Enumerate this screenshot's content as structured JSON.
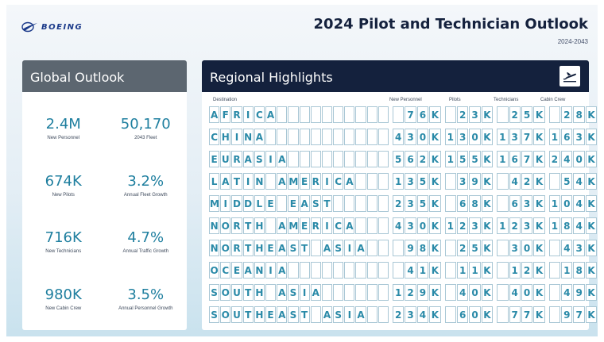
{
  "header": {
    "logo_text": "BOEING",
    "title": "2024 Pilot and Technician Outlook",
    "subtitle": "2024-2043"
  },
  "global": {
    "title": "Global Outlook",
    "stats": [
      {
        "value": "2.4M",
        "label": "New Personnel"
      },
      {
        "value": "50,170",
        "label": "2043 Fleet"
      },
      {
        "value": "674K",
        "label": "New Pilots"
      },
      {
        "value": "3.2%",
        "label": "Annual Fleet Growth"
      },
      {
        "value": "716K",
        "label": "New Technicians"
      },
      {
        "value": "4.7%",
        "label": "Annual Traffic Growth"
      },
      {
        "value": "980K",
        "label": "New Cabin Crew"
      },
      {
        "value": "3.5%",
        "label": "Annual Personnel Growth"
      }
    ]
  },
  "regional": {
    "title": "Regional Highlights",
    "icon": "airplane-departure-icon",
    "columns": [
      "Destination",
      "New Personnel",
      "Pilots",
      "Technicians",
      "Cabin Crew"
    ],
    "rows": [
      {
        "destination": "AFRICA",
        "personnel": "76K",
        "pilots": "23K",
        "technicians": "25K",
        "cabin": "28K"
      },
      {
        "destination": "CHINA",
        "personnel": "430K",
        "pilots": "130K",
        "technicians": "137K",
        "cabin": "163K"
      },
      {
        "destination": "EURASIA",
        "personnel": "562K",
        "pilots": "155K",
        "technicians": "167K",
        "cabin": "240K"
      },
      {
        "destination": "LATIN AMERICA",
        "personnel": "135K",
        "pilots": "39K",
        "technicians": "42K",
        "cabin": "54K"
      },
      {
        "destination": "MIDDLE EAST",
        "personnel": "235K",
        "pilots": "68K",
        "technicians": "63K",
        "cabin": "104K"
      },
      {
        "destination": "NORTH AMERICA",
        "personnel": "430K",
        "pilots": "123K",
        "technicians": "123K",
        "cabin": "184K"
      },
      {
        "destination": "NORTHEAST ASIA",
        "personnel": "98K",
        "pilots": "25K",
        "technicians": "30K",
        "cabin": "43K"
      },
      {
        "destination": "OCEANIA",
        "personnel": "41K",
        "pilots": "11K",
        "technicians": "12K",
        "cabin": "18K"
      },
      {
        "destination": "SOUTH ASIA",
        "personnel": "129K",
        "pilots": "40K",
        "technicians": "40K",
        "cabin": "49K"
      },
      {
        "destination": "SOUTHEAST ASIA",
        "personnel": "234K",
        "pilots": "60K",
        "technicians": "77K",
        "cabin": "97K"
      }
    ]
  },
  "colors": {
    "navy": "#14213d",
    "teal": "#2a8aa8",
    "panel_gray": "#5c6670"
  }
}
